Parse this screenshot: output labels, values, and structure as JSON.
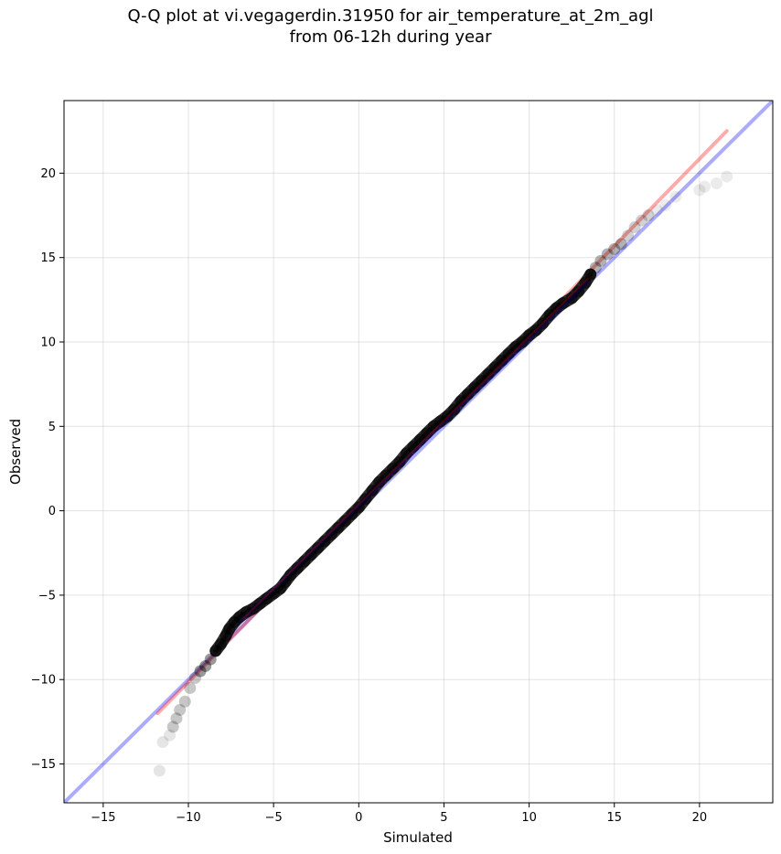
{
  "chart_data": {
    "type": "scatter",
    "title": "Q-Q plot at vi.vegagerdin.31950 for air_temperature_at_2m_agl",
    "subtitle": "from 06-12h during year",
    "xlabel": "Simulated",
    "ylabel": "Observed",
    "xlim": [
      -17.3,
      24.3
    ],
    "ylim": [
      -17.3,
      24.3
    ],
    "x_ticks": [
      -15,
      -10,
      -5,
      0,
      5,
      10,
      15,
      20
    ],
    "y_ticks": [
      -15,
      -10,
      -5,
      0,
      5,
      10,
      15,
      20
    ],
    "x_tick_labels": [
      "−15",
      "−10",
      "−5",
      "0",
      "5",
      "10",
      "15",
      "20"
    ],
    "y_tick_labels": [
      "−15",
      "−10",
      "−5",
      "0",
      "5",
      "10",
      "15",
      "20"
    ],
    "grid": true,
    "colors": {
      "points": "#000000",
      "identity_line": "#0000ff",
      "fit_line": "#ff0000"
    },
    "reference_lines": [
      {
        "kind": "identity",
        "color": "#0000ff",
        "x": [
          -17.3,
          24.3
        ],
        "y": [
          -17.3,
          24.3
        ]
      },
      {
        "kind": "fit",
        "color": "#ff0000",
        "x": [
          -11.8,
          21.6
        ],
        "y": [
          -12.0,
          22.5
        ]
      }
    ],
    "points": [
      [
        -11.7,
        -15.4
      ],
      [
        -11.5,
        -13.7
      ],
      [
        -11.1,
        -13.3
      ],
      [
        -10.9,
        -12.8
      ],
      [
        -10.7,
        -12.3
      ],
      [
        -10.5,
        -11.8
      ],
      [
        -10.2,
        -11.3
      ],
      [
        -9.9,
        -10.5
      ],
      [
        -9.6,
        -9.9
      ],
      [
        -9.3,
        -9.5
      ],
      [
        -9.0,
        -9.2
      ],
      [
        -8.7,
        -8.8
      ],
      [
        -8.4,
        -8.3
      ],
      [
        -8.1,
        -7.9
      ],
      [
        -7.8,
        -7.4
      ],
      [
        -7.6,
        -7.0
      ],
      [
        -7.3,
        -6.6
      ],
      [
        -7.0,
        -6.3
      ],
      [
        -6.6,
        -6.0
      ],
      [
        -6.2,
        -5.8
      ],
      [
        -5.8,
        -5.5
      ],
      [
        -5.4,
        -5.2
      ],
      [
        -5.0,
        -4.9
      ],
      [
        -4.6,
        -4.6
      ],
      [
        -4.3,
        -4.2
      ],
      [
        -4.0,
        -3.8
      ],
      [
        -3.6,
        -3.4
      ],
      [
        -3.2,
        -3.0
      ],
      [
        -2.8,
        -2.6
      ],
      [
        -2.4,
        -2.2
      ],
      [
        -2.0,
        -1.8
      ],
      [
        -1.6,
        -1.4
      ],
      [
        -1.2,
        -1.0
      ],
      [
        -0.8,
        -0.6
      ],
      [
        -0.4,
        -0.2
      ],
      [
        0.0,
        0.2
      ],
      [
        0.4,
        0.7
      ],
      [
        0.8,
        1.2
      ],
      [
        1.2,
        1.7
      ],
      [
        1.6,
        2.1
      ],
      [
        2.0,
        2.5
      ],
      [
        2.4,
        2.9
      ],
      [
        2.8,
        3.4
      ],
      [
        3.2,
        3.8
      ],
      [
        3.6,
        4.2
      ],
      [
        4.0,
        4.6
      ],
      [
        4.4,
        5.0
      ],
      [
        4.8,
        5.3
      ],
      [
        5.2,
        5.6
      ],
      [
        5.6,
        6.0
      ],
      [
        6.0,
        6.5
      ],
      [
        6.4,
        6.9
      ],
      [
        6.8,
        7.3
      ],
      [
        7.2,
        7.7
      ],
      [
        7.6,
        8.1
      ],
      [
        8.0,
        8.5
      ],
      [
        8.4,
        8.9
      ],
      [
        8.8,
        9.3
      ],
      [
        9.2,
        9.7
      ],
      [
        9.6,
        10.0
      ],
      [
        10.0,
        10.4
      ],
      [
        10.4,
        10.7
      ],
      [
        10.8,
        11.1
      ],
      [
        11.2,
        11.6
      ],
      [
        11.6,
        12.0
      ],
      [
        12.0,
        12.3
      ],
      [
        12.5,
        12.6
      ],
      [
        12.9,
        13.0
      ],
      [
        13.3,
        13.5
      ],
      [
        13.6,
        14.0
      ],
      [
        13.9,
        14.4
      ],
      [
        14.2,
        14.8
      ],
      [
        14.6,
        15.2
      ],
      [
        15.0,
        15.5
      ],
      [
        15.4,
        15.8
      ],
      [
        15.8,
        16.3
      ],
      [
        16.2,
        16.8
      ],
      [
        16.6,
        17.2
      ],
      [
        17.0,
        17.5
      ],
      [
        17.5,
        17.8
      ],
      [
        18.0,
        18.1
      ],
      [
        18.6,
        18.6
      ],
      [
        20.0,
        19.0
      ],
      [
        20.3,
        19.2
      ],
      [
        21.0,
        19.4
      ],
      [
        21.6,
        19.8
      ]
    ]
  }
}
